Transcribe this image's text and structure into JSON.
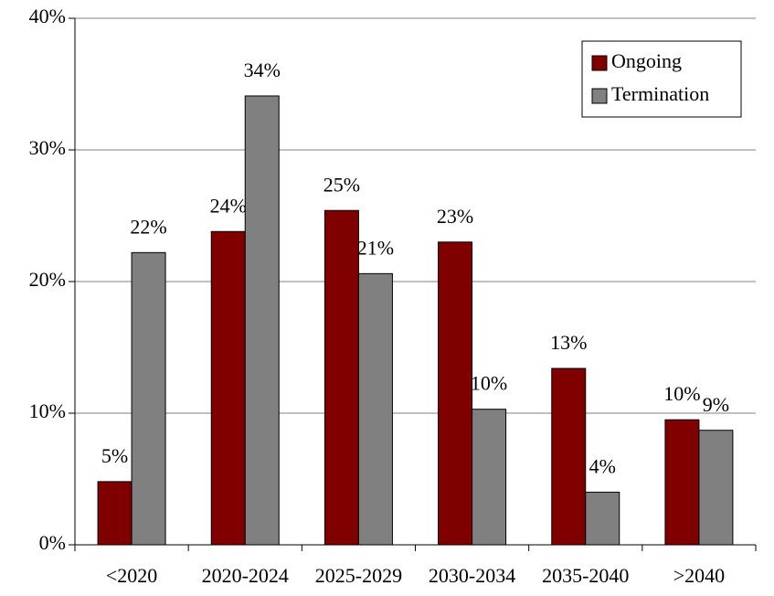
{
  "chart_data": {
    "type": "bar",
    "categories": [
      "<2020",
      "2020-2024",
      "2025-2029",
      "2030-2034",
      "2035-2040",
      ">2040"
    ],
    "series": [
      {
        "name": "Ongoing",
        "color": "#800000",
        "values": [
          4.8,
          23.8,
          25.4,
          23.0,
          13.4,
          9.5
        ],
        "value_labels": [
          "5%",
          "24%",
          "25%",
          "23%",
          "13%",
          "10%"
        ]
      },
      {
        "name": "Termination",
        "color": "#808080",
        "values": [
          22.2,
          34.1,
          20.6,
          10.3,
          4.0,
          8.7
        ],
        "value_labels": [
          "22%",
          "34%",
          "21%",
          "10%",
          "4%",
          "9%"
        ]
      }
    ],
    "ylim": [
      0,
      40
    ],
    "yticks": [
      {
        "value": 0,
        "label": "0%"
      },
      {
        "value": 10,
        "label": "10%"
      },
      {
        "value": 20,
        "label": "20%"
      },
      {
        "value": 30,
        "label": "30%"
      },
      {
        "value": 40,
        "label": "40%"
      }
    ],
    "grid": true,
    "legend": "top-right"
  }
}
